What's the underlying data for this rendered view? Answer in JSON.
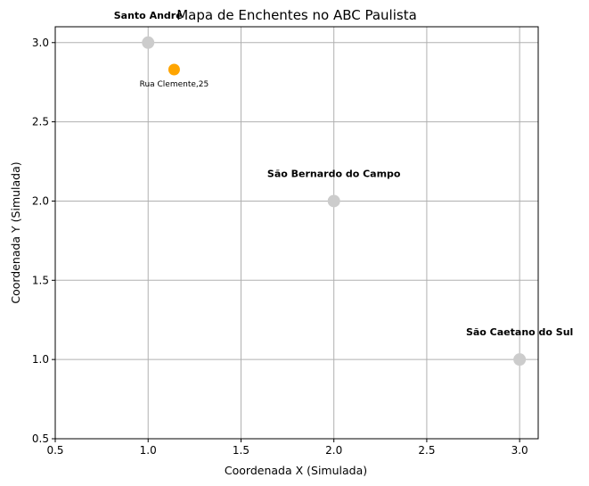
{
  "chart_data": {
    "type": "scatter",
    "title": "Mapa de Enchentes no ABC Paulista",
    "xlabel": "Coordenada X (Simulada)",
    "ylabel": "Coordenada Y (Simulada)",
    "xlim": [
      0.5,
      3.1
    ],
    "ylim": [
      0.5,
      3.1
    ],
    "xticks": [
      "0.5",
      "1.0",
      "1.5",
      "2.0",
      "2.5",
      "3.0"
    ],
    "yticks": [
      "0.5",
      "1.0",
      "1.5",
      "2.0",
      "2.5",
      "3.0"
    ],
    "grid": true,
    "series": [
      {
        "points": [
          {
            "x": 1.0,
            "y": 3.0,
            "label": "Santo André"
          },
          {
            "x": 2.0,
            "y": 2.0,
            "label": "São Bernardo do Campo"
          },
          {
            "x": 3.0,
            "y": 1.0,
            "label": "São Caetano do Sul"
          }
        ],
        "color": "#cccccc"
      },
      {
        "points": [
          {
            "x": 1.14,
            "y": 2.83,
            "label": "Rua Clemente,25"
          }
        ],
        "color": "#ffa500"
      }
    ]
  }
}
